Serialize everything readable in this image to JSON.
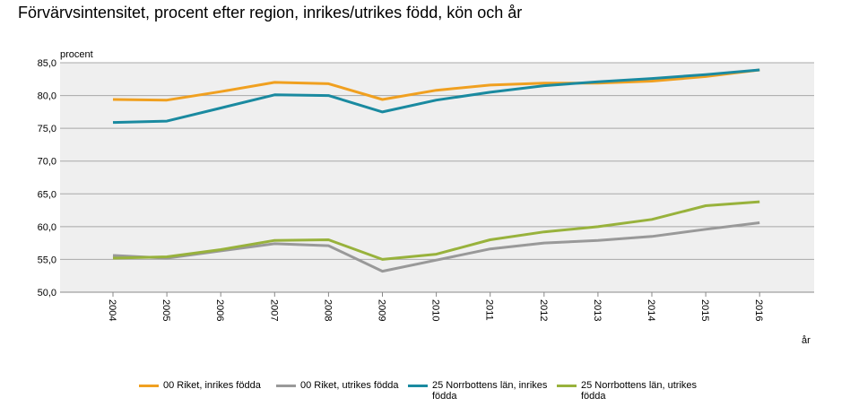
{
  "chart_data": {
    "type": "line",
    "title": "Förvärvsintensitet, procent efter region, inrikes/utrikes född, kön och år",
    "ylabel": "procent",
    "xlabel": "år",
    "ylim": [
      50,
      85
    ],
    "y_ticks": [
      "50,0",
      "55,0",
      "60,0",
      "65,0",
      "70,0",
      "75,0",
      "80,0",
      "85,0"
    ],
    "y_tick_values": [
      50,
      55,
      60,
      65,
      70,
      75,
      80,
      85
    ],
    "grid": true,
    "legend_position": "bottom",
    "categories": [
      "2004",
      "2005",
      "2006",
      "2007",
      "2008",
      "2009",
      "2010",
      "2011",
      "2012",
      "2013",
      "2014",
      "2015",
      "2016"
    ],
    "series": [
      {
        "name": "00 Riket, inrikes födda",
        "color": "#f0a020",
        "values": [
          79.4,
          79.3,
          80.6,
          82.0,
          81.8,
          79.4,
          80.8,
          81.6,
          81.9,
          81.9,
          82.2,
          82.9,
          83.9
        ]
      },
      {
        "name": "00 Riket, utrikes födda",
        "color": "#999999",
        "values": [
          55.6,
          55.2,
          56.3,
          57.4,
          57.1,
          53.2,
          54.9,
          56.6,
          57.5,
          57.9,
          58.5,
          59.6,
          60.6
        ]
      },
      {
        "name": "25 Norrbottens län, inrikes födda",
        "color": "#1a8aa0",
        "values": [
          75.9,
          76.1,
          78.1,
          80.1,
          80.0,
          77.5,
          79.3,
          80.5,
          81.5,
          82.1,
          82.6,
          83.2,
          83.9
        ]
      },
      {
        "name": "25 Norrbottens län, utrikes födda",
        "color": "#98b23c",
        "values": [
          55.2,
          55.4,
          56.5,
          57.9,
          58.0,
          55.0,
          55.8,
          58.0,
          59.2,
          60.0,
          61.1,
          63.2,
          63.8
        ]
      }
    ]
  }
}
